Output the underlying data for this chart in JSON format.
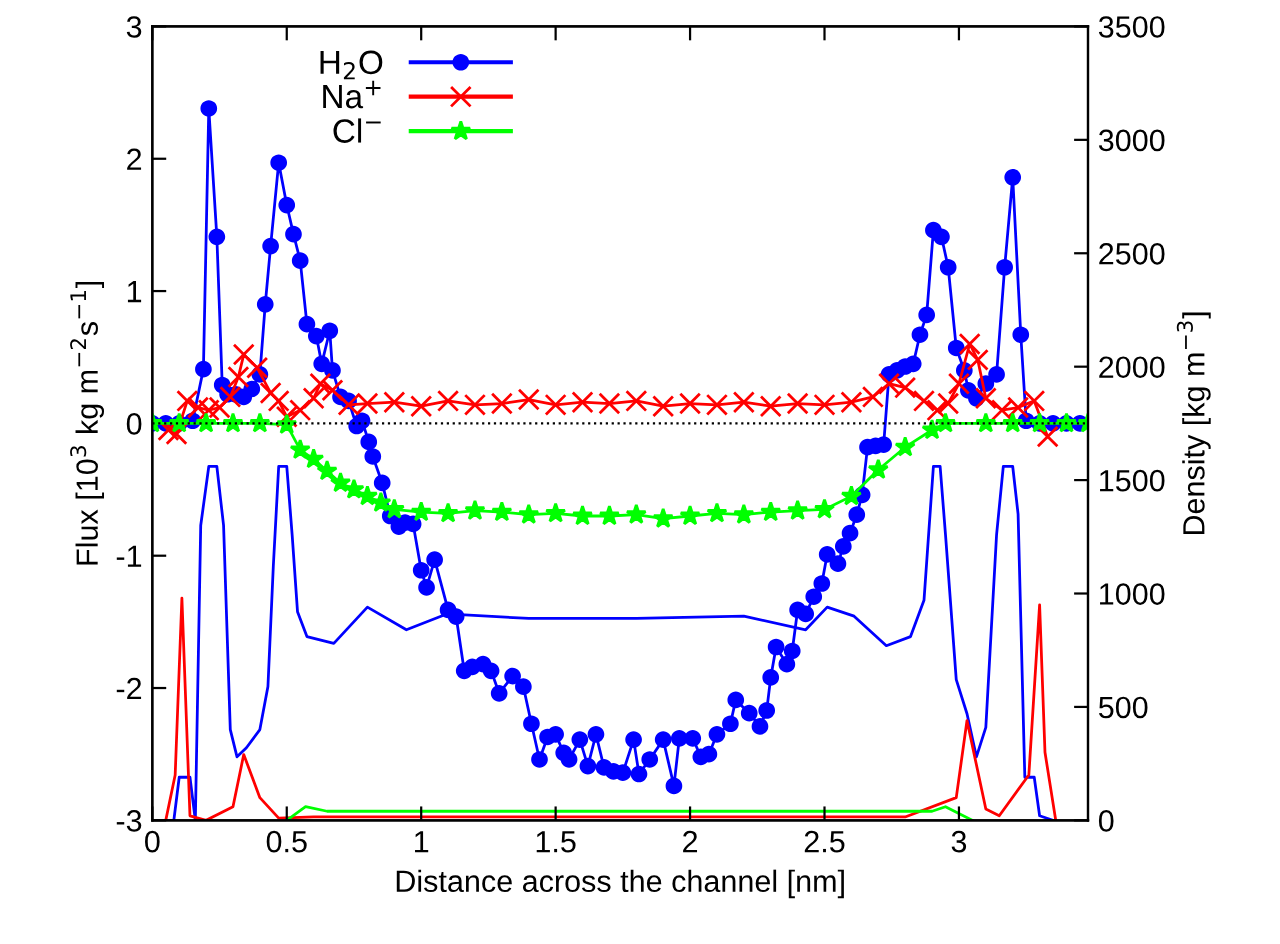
{
  "chart_data": {
    "type": "line",
    "xlabel": "Distance across the channel [nm]",
    "ylabel": "Flux [10$^{3}$ kg m$^{−2}$s$^{−1}$]",
    "y2label": "Density [kg m$^{−3}$]",
    "xlim": [
      0,
      3.48
    ],
    "xticks": [
      0,
      0.5,
      1,
      1.5,
      2,
      2.5,
      3
    ],
    "ylim": [
      -3,
      3
    ],
    "yticks": [
      -3,
      -2,
      -1,
      0,
      1,
      2,
      3
    ],
    "y2lim": [
      0,
      3500
    ],
    "y2ticks": [
      0,
      500,
      1000,
      1500,
      2000,
      2500,
      3000,
      3500
    ],
    "legend": "top",
    "grid": false,
    "ref_lines": [
      {
        "axis": "y",
        "value": 0,
        "color": "#000000",
        "line_style": "dotted"
      }
    ],
    "series": [
      {
        "name": "H$_{2}$O",
        "color": "#0000ff",
        "marker": "circle",
        "x": [
          0,
          0.05,
          0.1,
          0.15,
          0.19,
          0.21,
          0.24,
          0.26,
          0.28,
          0.31,
          0.34,
          0.37,
          0.4,
          0.42,
          0.44,
          0.47,
          0.5,
          0.525,
          0.55,
          0.575,
          0.61,
          0.63,
          0.66,
          0.67,
          0.7,
          0.73,
          0.76,
          0.78,
          0.805,
          0.82,
          0.855,
          0.885,
          0.917,
          0.94,
          0.97,
          1.0,
          1.02,
          1.05,
          1.1,
          1.13,
          1.16,
          1.19,
          1.23,
          1.26,
          1.29,
          1.34,
          1.38,
          1.41,
          1.44,
          1.47,
          1.5,
          1.53,
          1.55,
          1.59,
          1.62,
          1.65,
          1.68,
          1.715,
          1.75,
          1.79,
          1.81,
          1.85,
          1.9,
          1.94,
          1.96,
          2.01,
          2.04,
          2.07,
          2.1,
          2.15,
          2.17,
          2.22,
          2.26,
          2.285,
          2.3,
          2.32,
          2.36,
          2.38,
          2.4,
          2.43,
          2.46,
          2.49,
          2.51,
          2.55,
          2.57,
          2.595,
          2.62,
          2.64,
          2.66,
          2.69,
          2.72,
          2.74,
          2.77,
          2.8,
          2.83,
          2.855,
          2.88,
          2.905,
          2.935,
          2.96,
          2.99,
          3.02,
          3.035,
          3.065,
          3.1,
          3.14,
          3.17,
          3.2,
          3.23,
          3.25,
          3.3,
          3.35,
          3.4,
          3.45
        ],
        "values": [
          0,
          0,
          0,
          0.02,
          0.41,
          2.38,
          1.41,
          0.29,
          0.22,
          0.22,
          0.2,
          0.26,
          0.37,
          0.9,
          1.34,
          1.97,
          1.65,
          1.43,
          1.23,
          0.75,
          0.66,
          0.45,
          0.7,
          0.4,
          0.2,
          0.17,
          -0.02,
          0.02,
          -0.14,
          -0.25,
          -0.45,
          -0.7,
          -0.78,
          -0.75,
          -0.76,
          -1.11,
          -1.24,
          -1.03,
          -1.41,
          -1.46,
          -1.87,
          -1.84,
          -1.82,
          -1.87,
          -2.04,
          -1.91,
          -1.99,
          -2.27,
          -2.54,
          -2.37,
          -2.35,
          -2.49,
          -2.54,
          -2.39,
          -2.59,
          -2.35,
          -2.6,
          -2.63,
          -2.64,
          -2.39,
          -2.65,
          -2.54,
          -2.39,
          -2.74,
          -2.38,
          -2.38,
          -2.52,
          -2.5,
          -2.35,
          -2.27,
          -2.09,
          -2.19,
          -2.29,
          -2.17,
          -1.92,
          -1.69,
          -1.82,
          -1.72,
          -1.41,
          -1.44,
          -1.31,
          -1.21,
          -0.99,
          -1.06,
          -0.93,
          -0.83,
          -0.69,
          -0.54,
          -0.18,
          -0.17,
          -0.16,
          0.37,
          0.4,
          0.43,
          0.45,
          0.67,
          0.82,
          1.46,
          1.41,
          1.18,
          0.57,
          0.4,
          0.25,
          0.19,
          0.3,
          0.37,
          1.18,
          1.86,
          0.67,
          0.02,
          0,
          0,
          0,
          0
        ]
      },
      {
        "name": "Na$^{+}$",
        "color": "#ff0000",
        "marker": "cross",
        "x": [
          0.06,
          0.09,
          0.13,
          0.17,
          0.21,
          0.25,
          0.29,
          0.32,
          0.34,
          0.39,
          0.44,
          0.47,
          0.5,
          0.55,
          0.6,
          0.625,
          0.67,
          0.73,
          0.8,
          0.9,
          1.0,
          1.1,
          1.2,
          1.3,
          1.4,
          1.5,
          1.6,
          1.7,
          1.8,
          1.9,
          2.0,
          2.1,
          2.2,
          2.3,
          2.4,
          2.5,
          2.6,
          2.68,
          2.74,
          2.8,
          2.87,
          2.92,
          2.96,
          3.0,
          3.04,
          3.07,
          3.1,
          3.16,
          3.22,
          3.28,
          3.33
        ],
        "values": [
          -0.05,
          -0.08,
          0.17,
          0.12,
          0.1,
          0.12,
          0.2,
          0.35,
          0.52,
          0.42,
          0.23,
          0.17,
          0.05,
          0.1,
          0.19,
          0.3,
          0.25,
          0.14,
          0.15,
          0.16,
          0.13,
          0.17,
          0.14,
          0.15,
          0.18,
          0.14,
          0.16,
          0.15,
          0.17,
          0.13,
          0.15,
          0.14,
          0.16,
          0.13,
          0.15,
          0.14,
          0.16,
          0.2,
          0.3,
          0.27,
          0.17,
          0.1,
          0.15,
          0.3,
          0.6,
          0.48,
          0.19,
          0.1,
          0.12,
          0.17,
          -0.1
        ]
      },
      {
        "name": "Cl$^{−}$",
        "color": "#00ff00",
        "marker": "star",
        "x": [
          0,
          0.1,
          0.2,
          0.3,
          0.4,
          0.5,
          0.55,
          0.6,
          0.65,
          0.7,
          0.75,
          0.8,
          0.85,
          0.9,
          1.0,
          1.1,
          1.2,
          1.3,
          1.4,
          1.5,
          1.6,
          1.7,
          1.8,
          1.9,
          2.0,
          2.1,
          2.2,
          2.3,
          2.4,
          2.5,
          2.6,
          2.7,
          2.8,
          2.9,
          2.95,
          3.1,
          3.2,
          3.3,
          3.4,
          3.48
        ],
        "values": [
          0,
          0,
          0,
          0,
          0,
          -0.01,
          -0.2,
          -0.27,
          -0.36,
          -0.45,
          -0.5,
          -0.55,
          -0.6,
          -0.65,
          -0.67,
          -0.68,
          -0.66,
          -0.67,
          -0.69,
          -0.68,
          -0.7,
          -0.7,
          -0.69,
          -0.72,
          -0.7,
          -0.68,
          -0.69,
          -0.67,
          -0.66,
          -0.65,
          -0.55,
          -0.35,
          -0.18,
          -0.05,
          0,
          0,
          0,
          0,
          0,
          0
        ]
      },
      {
        "color": "#0000ff",
        "axis": "y2",
        "marker": "none",
        "x": [
          0.05,
          0.08,
          0.1,
          0.14,
          0.16,
          0.18,
          0.21,
          0.24,
          0.265,
          0.29,
          0.315,
          0.35,
          0.4,
          0.43,
          0.45,
          0.47,
          0.5,
          0.52,
          0.54,
          0.575,
          0.675,
          0.8,
          0.945,
          1.095,
          1.4,
          1.8,
          2.2,
          2.43,
          2.51,
          2.61,
          2.73,
          2.82,
          2.87,
          2.905,
          2.93,
          2.95,
          2.99,
          3.03,
          3.065,
          3.1,
          3.14,
          3.165,
          3.2,
          3.22,
          3.245,
          3.28,
          3.3,
          3.35
        ],
        "values": [
          0,
          0,
          190,
          190,
          0,
          1300,
          1560,
          1560,
          1300,
          400,
          280,
          320,
          400,
          590,
          1120,
          1560,
          1560,
          1260,
          920,
          810,
          780,
          940,
          840,
          910,
          890,
          890,
          900,
          840,
          940,
          900,
          770,
          810,
          970,
          1560,
          1560,
          1260,
          620,
          470,
          280,
          410,
          1260,
          1560,
          1560,
          1350,
          190,
          190,
          20,
          0
        ]
      },
      {
        "color": "#ff0000",
        "axis": "y2",
        "marker": "none",
        "x": [
          0.05,
          0.085,
          0.11,
          0.14,
          0.2,
          0.3,
          0.34,
          0.4,
          0.47,
          0.6,
          1.0,
          1.5,
          2.0,
          2.5,
          2.8,
          2.99,
          3.03,
          3.1,
          3.15,
          3.26,
          3.3,
          3.32,
          3.36
        ],
        "values": [
          0,
          200,
          980,
          20,
          0,
          60,
          290,
          100,
          10,
          15,
          15,
          15,
          15,
          15,
          15,
          100,
          440,
          50,
          20,
          200,
          950,
          300,
          0
        ]
      },
      {
        "color": "#00ff00",
        "axis": "y2",
        "marker": "none",
        "x": [
          0.5,
          0.57,
          0.65,
          1.0,
          1.5,
          2.0,
          2.5,
          2.9,
          2.95,
          3.05
        ],
        "values": [
          0,
          60,
          40,
          40,
          40,
          40,
          40,
          40,
          60,
          0
        ]
      }
    ]
  }
}
